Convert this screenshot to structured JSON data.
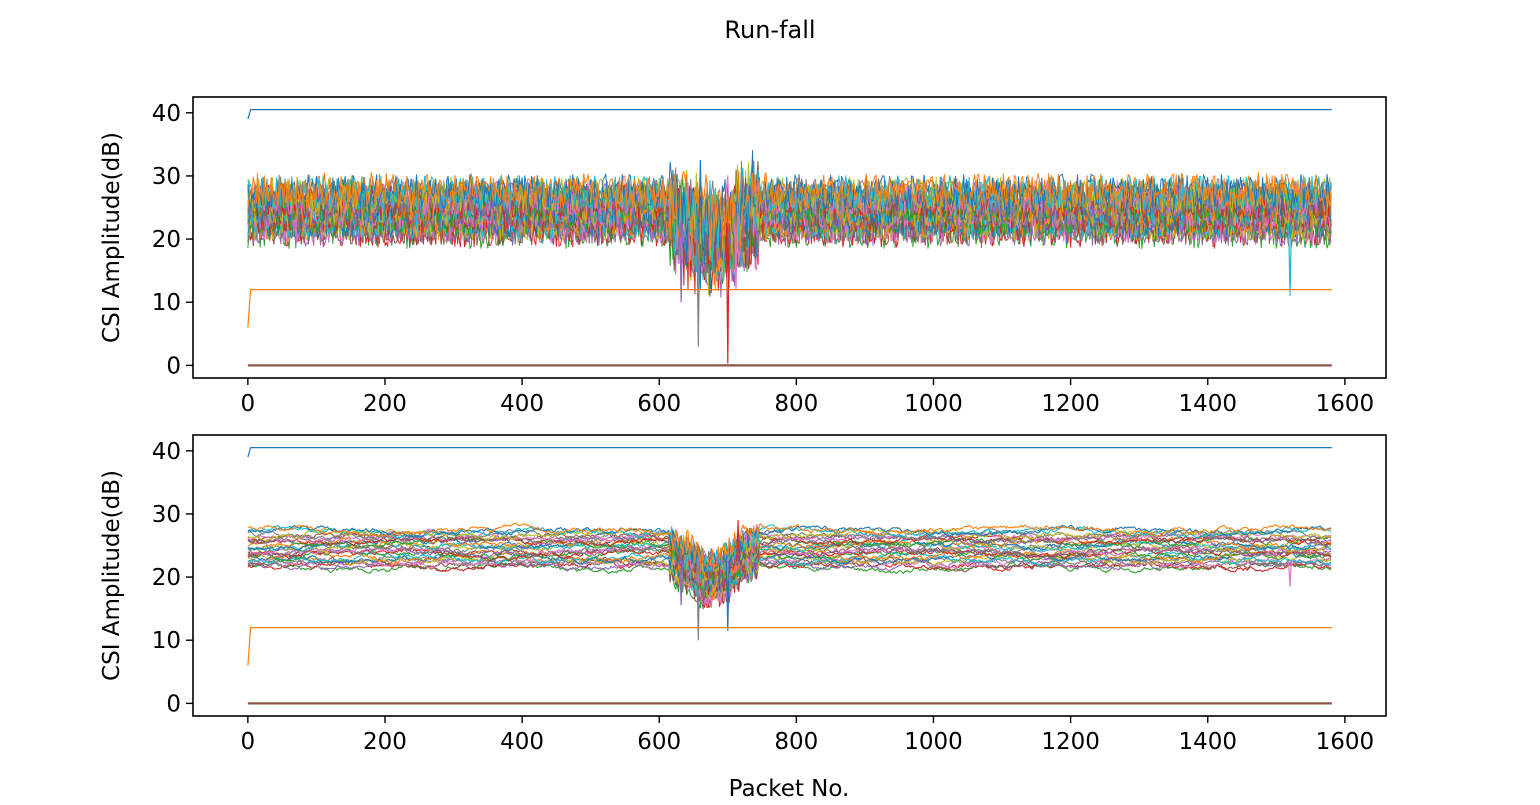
{
  "chart_data": {
    "suptitle": "Run-fall",
    "shared_xlabel": "Packet No.",
    "palette": [
      "#1f77b4",
      "#ff7f0e",
      "#2ca02c",
      "#d62728",
      "#9467bd",
      "#8c564b",
      "#e377c2",
      "#7f7f7f",
      "#bcbd22",
      "#17becf"
    ],
    "subplots": [
      {
        "type": "line",
        "variant": "raw",
        "ylabel": "CSI Amplitude(dB)",
        "xlim": [
          -80,
          1660
        ],
        "ylim": [
          -2,
          42.5
        ],
        "xticks": [
          0,
          200,
          400,
          600,
          800,
          1000,
          1200,
          1400,
          1600
        ],
        "yticks": [
          0,
          10,
          20,
          30,
          40
        ],
        "n_packets": 1581,
        "constant_series": [
          {
            "name": "",
            "color": "#1f77b4",
            "start_value": 39,
            "value": 40.5
          },
          {
            "name": "",
            "color": "#ff7f0e",
            "start_value": 6,
            "value": 12
          },
          {
            "name": "",
            "color": "#8c564b",
            "start_value": 0,
            "value": 0
          }
        ],
        "band": {
          "series_count": 30,
          "center": 24.5,
          "spread": 3.2,
          "noise": 3.5
        },
        "events": [
          {
            "x": 632,
            "y": 10
          },
          {
            "x": 657,
            "y": 3
          },
          {
            "x": 660,
            "y": 32.5
          },
          {
            "x": 700,
            "y": 0.3
          },
          {
            "x": 712,
            "y": 12
          },
          {
            "x": 1520,
            "y": 11
          }
        ]
      },
      {
        "type": "line",
        "variant": "smoothed",
        "ylabel": "CSI Amplitude(dB)",
        "xlim": [
          -80,
          1660
        ],
        "ylim": [
          -2,
          42.5
        ],
        "xticks": [
          0,
          200,
          400,
          600,
          800,
          1000,
          1200,
          1400,
          1600
        ],
        "yticks": [
          0,
          10,
          20,
          30,
          40
        ],
        "n_packets": 1581,
        "constant_series": [
          {
            "name": "",
            "color": "#1f77b4",
            "start_value": 39,
            "value": 40.5
          },
          {
            "name": "",
            "color": "#ff7f0e",
            "start_value": 6,
            "value": 12
          },
          {
            "name": "",
            "color": "#8c564b",
            "start_value": 0,
            "value": 0
          }
        ],
        "band": {
          "series_count": 30,
          "center": 24.5,
          "spread": 3.0,
          "noise": 0.45
        },
        "events": [
          {
            "x": 632,
            "y": 15.5
          },
          {
            "x": 657,
            "y": 10
          },
          {
            "x": 700,
            "y": 11.5
          },
          {
            "x": 715,
            "y": 29
          },
          {
            "x": 1520,
            "y": 18.5
          }
        ]
      }
    ]
  }
}
